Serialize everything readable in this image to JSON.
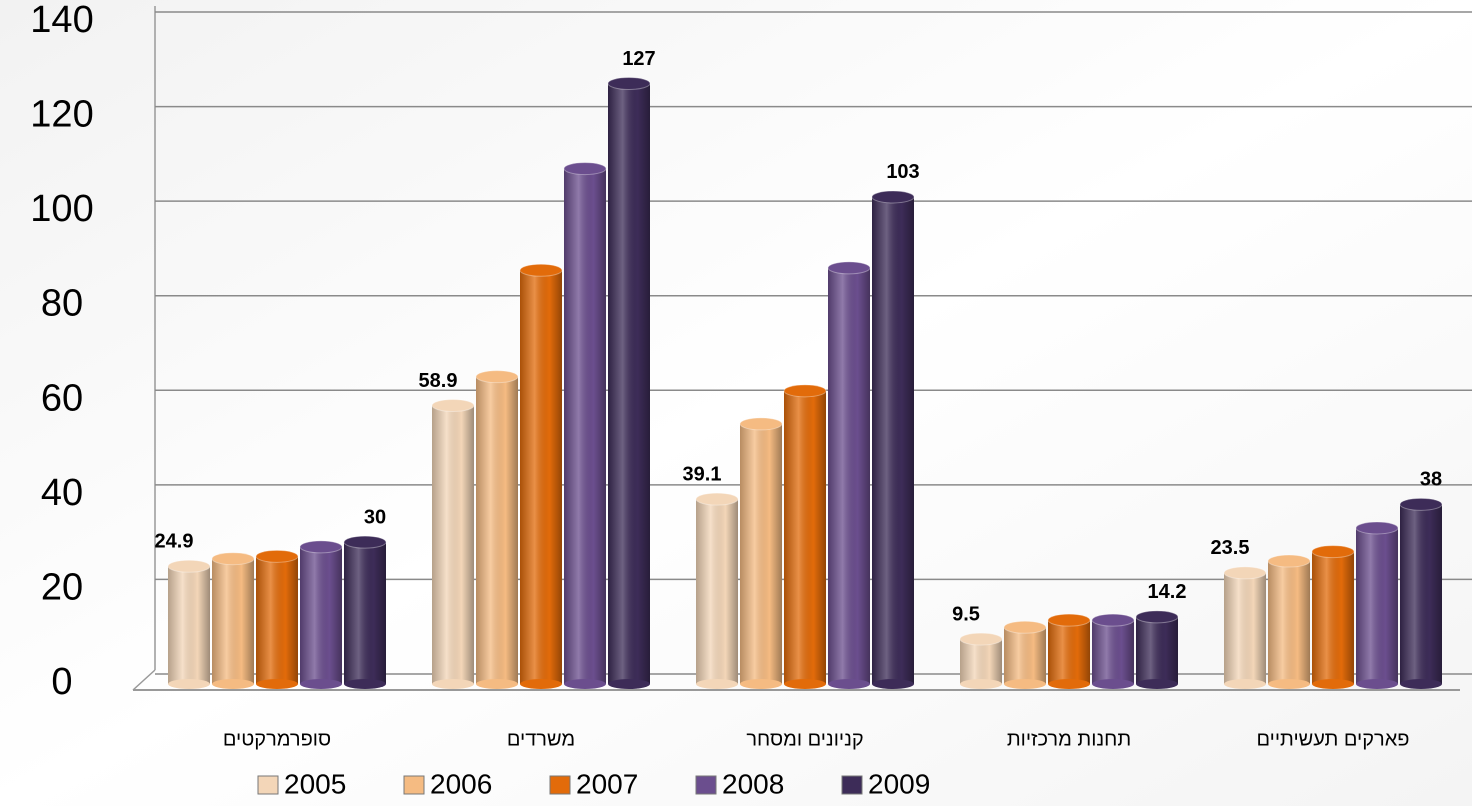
{
  "chart_data": {
    "type": "bar",
    "categories": [
      "סופרמרקטים",
      "משרדים",
      "קניונים ומסחר",
      "תחנות מרכזיות",
      "פארקים תעשיתיים"
    ],
    "series": [
      {
        "name": "2005",
        "color": "#f3d6b8",
        "values": [
          24.9,
          58.9,
          39.1,
          9.5,
          23.5
        ],
        "show_labels": [
          true,
          true,
          true,
          true,
          true
        ]
      },
      {
        "name": "2006",
        "color": "#f5bb82",
        "values": [
          26.5,
          65,
          55,
          12,
          26
        ],
        "show_labels": [
          false,
          false,
          false,
          false,
          false
        ]
      },
      {
        "name": "2007",
        "color": "#e26b0a",
        "values": [
          27,
          87.5,
          62,
          13.5,
          28
        ],
        "show_labels": [
          false,
          false,
          false,
          false,
          false
        ]
      },
      {
        "name": "2008",
        "color": "#6b4e8e",
        "values": [
          29,
          109,
          88,
          13.5,
          33
        ],
        "show_labels": [
          false,
          false,
          false,
          false,
          false
        ]
      },
      {
        "name": "2009",
        "color": "#3d2c58",
        "values": [
          30,
          127,
          103,
          14.2,
          38
        ],
        "show_labels": [
          true,
          true,
          true,
          true,
          true
        ]
      }
    ],
    "ylim": [
      0,
      140
    ],
    "yticks": [
      0,
      20,
      40,
      60,
      80,
      100,
      120,
      140
    ],
    "grid": true
  }
}
